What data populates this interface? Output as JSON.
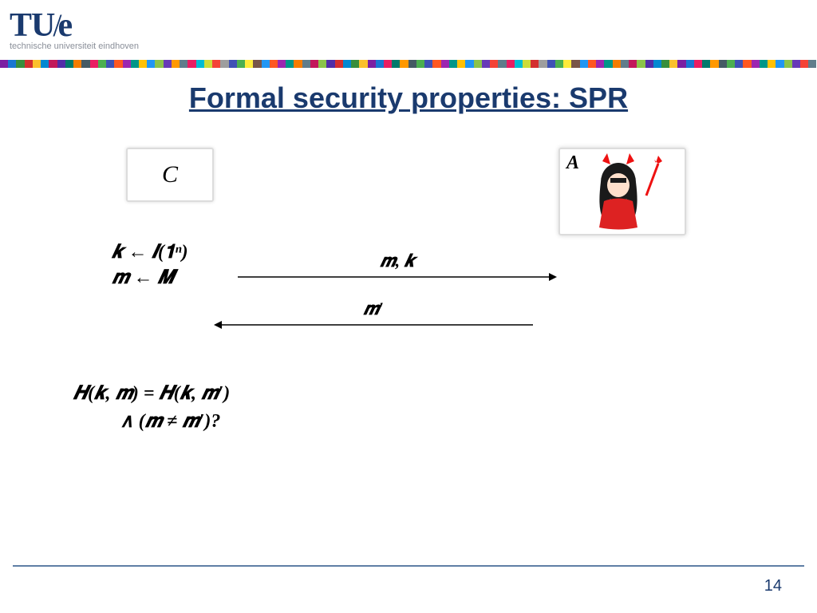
{
  "logo": {
    "main": "TU/e",
    "sub": "technische universiteit eindhoven"
  },
  "colorbar": [
    "#7b1fa2",
    "#1976d2",
    "#388e3c",
    "#d32f2f",
    "#fbc02d",
    "#0288d1",
    "#c2185b",
    "#512da8",
    "#00796b",
    "#f57c00",
    "#455a64",
    "#e91e63",
    "#4caf50",
    "#3f51b5",
    "#ff5722",
    "#9c27b0",
    "#009688",
    "#ffc107",
    "#2196f3",
    "#8bc34a",
    "#673ab7",
    "#ff9800",
    "#607d8b",
    "#e91e63",
    "#00bcd4",
    "#cddc39",
    "#f44336",
    "#9e9e9e",
    "#3f51b5",
    "#4caf50",
    "#ffeb3b",
    "#795548",
    "#2196f3",
    "#ff5722",
    "#9c27b0",
    "#009688",
    "#f57c00",
    "#607d8b",
    "#c2185b",
    "#8bc34a",
    "#512da8",
    "#d32f2f",
    "#0288d1",
    "#388e3c",
    "#fbc02d",
    "#7b1fa2",
    "#1976d2",
    "#e91e63",
    "#00796b",
    "#ff9800",
    "#455a64",
    "#4caf50",
    "#3f51b5",
    "#ff5722",
    "#9c27b0",
    "#009688",
    "#ffc107",
    "#2196f3",
    "#8bc34a",
    "#673ab7",
    "#f44336",
    "#607d8b",
    "#e91e63",
    "#00bcd4",
    "#cddc39",
    "#d32f2f",
    "#9e9e9e",
    "#3f51b5",
    "#4caf50",
    "#ffeb3b",
    "#795548",
    "#2196f3",
    "#ff5722",
    "#9c27b0",
    "#009688",
    "#f57c00",
    "#607d8b",
    "#c2185b",
    "#8bc34a",
    "#512da8",
    "#0288d1",
    "#388e3c",
    "#fbc02d",
    "#7b1fa2",
    "#1976d2",
    "#e91e63",
    "#00796b",
    "#ff9800",
    "#455a64",
    "#4caf50",
    "#3f51b5",
    "#ff5722",
    "#9c27b0",
    "#009688",
    "#ffc107",
    "#2196f3",
    "#8bc34a",
    "#673ab7",
    "#f44336",
    "#607d8b"
  ],
  "title": "Formal security properties: SPR",
  "challenger_label": "C",
  "adversary_label": "A",
  "eq": {
    "k_sample": "𝒌 ← 𝑰(𝟏ⁿ)",
    "m_sample": "𝒎 ← 𝑴",
    "send": "𝒎, 𝒌",
    "recv": "𝒎′",
    "check1": "𝑯(𝒌, 𝒎) = 𝑯(𝒌, 𝒎′)",
    "check2": "∧ (𝒎 ≠ 𝒎′)?"
  },
  "page_number": "14",
  "colors": {
    "title": "#1a3a6e",
    "footer_line": "#5f7fa5",
    "devil_red": "#e11",
    "devil_hair": "#1a1a1a",
    "devil_face": "#ffe0cc",
    "devil_dress": "#d22"
  }
}
